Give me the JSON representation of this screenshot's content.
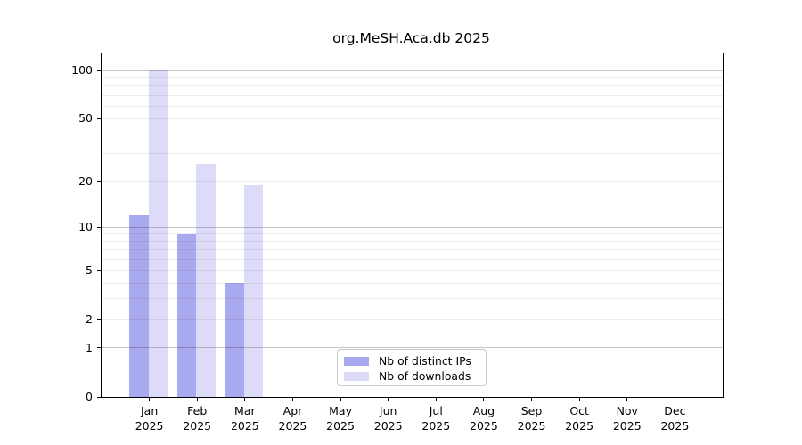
{
  "chart_data": {
    "type": "bar",
    "title": "org.MeSH.Aca.db 2025",
    "categories": [
      "Jan",
      "Feb",
      "Mar",
      "Apr",
      "May",
      "Jun",
      "Jul",
      "Aug",
      "Sep",
      "Oct",
      "Nov",
      "Dec"
    ],
    "year_label": "2025",
    "series": [
      {
        "name": "Nb of distinct IPs",
        "color": "#a9a9ef",
        "values": [
          12,
          9,
          4,
          0,
          0,
          0,
          0,
          0,
          0,
          0,
          0,
          0
        ]
      },
      {
        "name": "Nb of downloads",
        "color": "#dcdcf8",
        "values": [
          100,
          26,
          19,
          0,
          0,
          0,
          0,
          0,
          0,
          0,
          0,
          0
        ]
      }
    ],
    "yticks": [
      0,
      1,
      2,
      5,
      10,
      20,
      50,
      100
    ],
    "grid_major_values": [
      1,
      10,
      100
    ],
    "grid_minor_values": [
      2,
      3,
      4,
      5,
      6,
      7,
      8,
      9,
      20,
      30,
      40,
      50,
      60,
      70,
      80,
      90
    ],
    "scale": "log1p",
    "ylim": [
      0,
      100
    ],
    "grid": "on",
    "legend_position": "bottom-center",
    "colors": {
      "distinct_ips_bar": "#a9a9ef",
      "downloads_bar": "#dcdcf8",
      "grid_major": "#c9c9c9",
      "grid_minor": "#ededed",
      "spine": "#000000"
    }
  }
}
